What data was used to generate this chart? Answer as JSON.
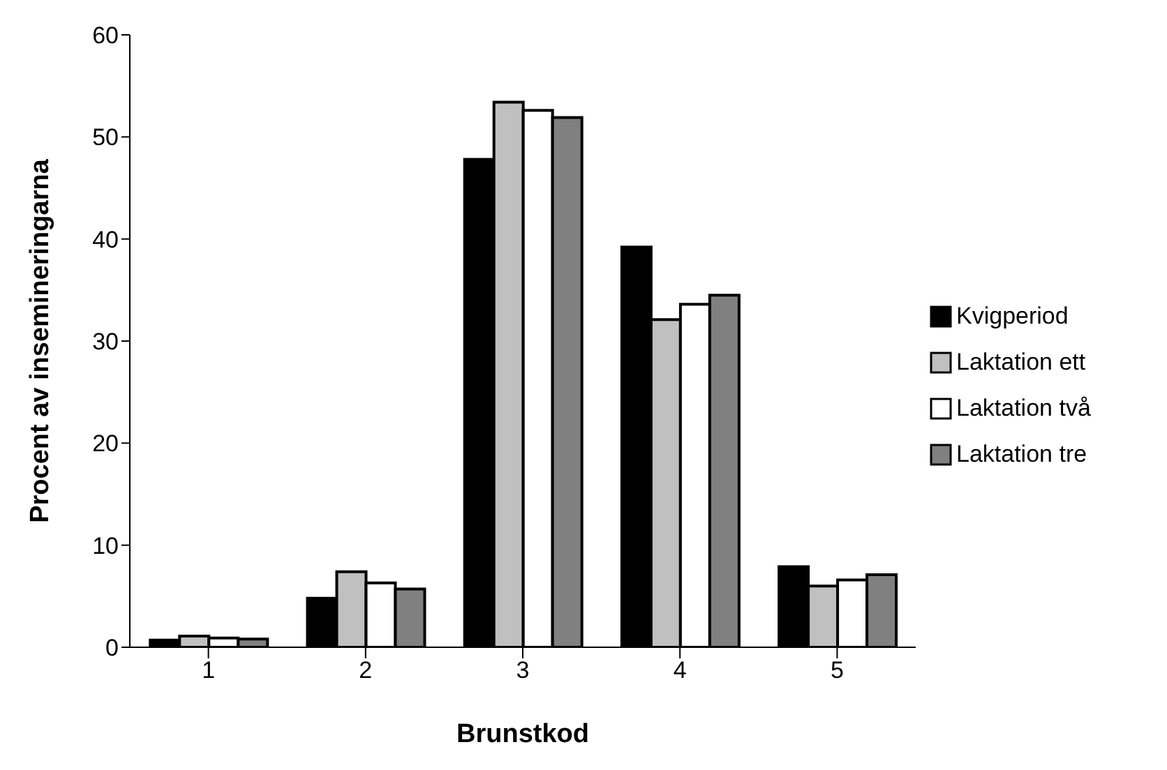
{
  "chart_data": {
    "type": "bar",
    "xlabel": "Brunstkod",
    "ylabel": "Procent av insemineringarna",
    "categories": [
      "1",
      "2",
      "3",
      "4",
      "5"
    ],
    "series": [
      {
        "name": "Kvigperiod",
        "color": "#000000",
        "values": [
          0.7,
          4.8,
          47.8,
          39.2,
          7.9
        ]
      },
      {
        "name": "Laktation ett",
        "color": "#c0c0c0",
        "values": [
          1.1,
          7.4,
          53.4,
          32.1,
          6.0
        ]
      },
      {
        "name": "Laktation två",
        "color": "#ffffff",
        "values": [
          0.9,
          6.3,
          52.6,
          33.6,
          6.6
        ]
      },
      {
        "name": "Laktation tre",
        "color": "#808080",
        "values": [
          0.8,
          5.7,
          51.9,
          34.5,
          7.1
        ]
      }
    ],
    "ylim": [
      0,
      60
    ],
    "yticks": [
      0,
      10,
      20,
      30,
      40,
      50,
      60
    ],
    "grid": false,
    "legend": "right"
  }
}
